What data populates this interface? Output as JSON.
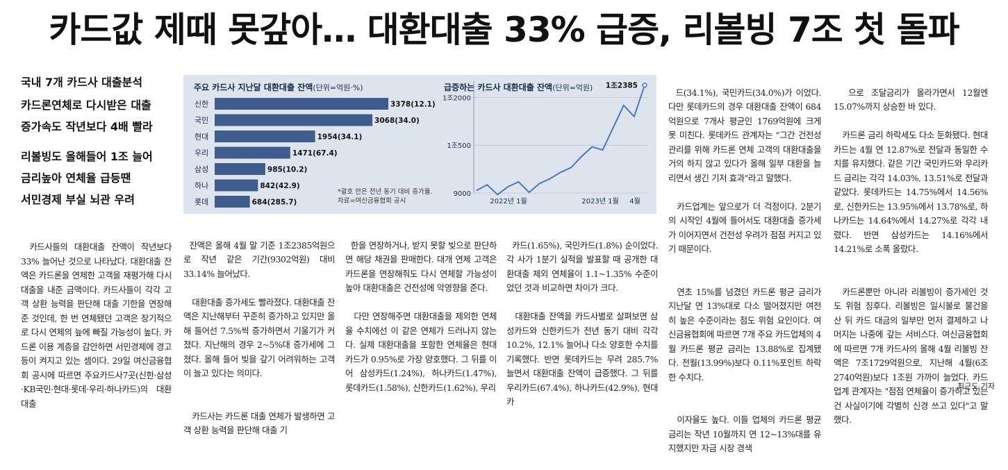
{
  "headline": "카드값 제때 못갚아… 대환대출 33% 급증, 리볼빙 7조 첫 돌파",
  "subheads": [
    "국내 7개 카드사 대출분석",
    "카드론연체로 다시받은 대출",
    "증가속도 작년보다 4배 빨라",
    "리볼빙도 올해들어 1조 늘어",
    "금리높아 연체율 급등땐",
    "서민경제 부실 뇌관 우려"
  ],
  "columns": [
    [
      "카드사들의 대환대출 잔액이 작년보다 33% 늘어난 것으로 나타났다. 대환대출 잔액은 카드론을 연체한 고객을 재평가해 다시 대출을 내준 금액이다. 카드사들이 각각 고객 상환 능력을 판단해 대출 기한을 연장해준 것인데, 한 번 연체됐던 고객은 장기적으로 다시 연체의 늪에 빠질 가능성이 높다. 카드론 이용 계층을 감안하면 서민경제에 경고등이 켜지고 있는 셈이다. 29일 여신금융협회 공시에 따르면 주요카드사7곳(신한·삼성·KB국민·현대·롯데·우리·하나카드)의 대환대출"
    ],
    [
      "잔액은 올해 4월 말 기준 1조2385억원으로 작년 같은 기간(9302억원) 대비 33.14% 늘어났다.",
      "대환대출 증가세도 빨라졌다. 대환대출 잔액은 지난해부터 꾸준히 증가하고 있지만 올해 들어선 7.5%씩 증가하면서 기울기가 커졌다. 지난해의 경우 2~5%대 증가세에 그쳤다. 올해 들어 빚을 갚기 어려워하는 고객이 늘고 있다는 의미다.",
      "카드사는 카드론 대출 연체가 발생하면 고객 상환 능력을 판단해 대출 기"
    ],
    [
      "한을 연장하거나, 받지 못할 빚으로 판단하면 해당 채권을 판매한다. 대개 연체 고객은 카드론을 연장해줘도 다시 연체할 가능성이 높아 대환대출은 건전성에 악영향을 준다.",
      "다만 연장해주면 대환대출을 제외한 연체율 수치에선 이 같은 연체가 드러나지 않는다. 실제 대환대출을 포함한 연체율은 현대카드가 0.95%로 가장 양호했다. 그 뒤를 이어 삼성카드(1.24%), 하나카드(1.47%), 롯데카드(1.58%), 신한카드(1.62%), 우리"
    ],
    [
      "카드(1.65%), 국민카드(1.8%) 순이었다. 각 사가 1분기 실적을 발표할 때 공개한 대환대출 제외 연체율이 1.1~1.35% 수준이었던 것과 비교하면 차이가 크다.",
      "대환대출 잔액을 카드사별로 살펴보면 삼성카드와 신한카드가 전년 동기 대비 각각 10.2%, 12.1% 늘어나 다소 양호한 수치를 기록했다. 반면 롯데카드는 무려 285.7% 늘면서 대환대출 잔액이 급증했다. 그 뒤를 우리카드(67.4%), 하나카드(42.9%), 현대카"
    ],
    [
      "드(34.1%), 국민카드(34.0%)가 이었다. 다만 롯데카드의 경우 대환대출 잔액이 684억원으로 7개사 평균인 1769억원에 크게 못 미친다. 롯데카드 관계자는 \"그간 건전성 관리를 위해 카드론 연체 고객의 대환대출을 거의 하지 않고 있다가 올해 일부 대환을 늘리면서 생긴 기저 효과\"라고 말했다.",
      "카드업계는 앞으로가 더 걱정이다. 2분기의 시작인 4월에 들어서도 대환대출 증가세가 이어지면서 건전성 우려가 점점 커지고 있기 때문이다.",
      "연초 15%를 넘겼던 카드론 평균 금리가 지난달 연 13%대로 다소 떨어졌지만 여전히 높은 수준이라는 점도 위험 요인이다. 여신금융협회에 따르면 7개 주요 카드업체의 4월 카드론 평균 금리는 13.88%로 집계됐다. 전월(13.99%)보다 0.11%포인트 하락한 수치다.",
      "이자율도 높다. 이들 업체의 카드론 평균 금리는 작년 10월까지 연 12~13%대를 유지했지만 자금 시장 경색"
    ],
    [
      "으로 조달금리가 올라가면서 12월엔 15.07%까지 상승한 바 있다.",
      "카드론 금리 하락세도 다소 둔화됐다. 현대카드는 4월 연 12.87%로 전달과 동일한 수치를 유지했다. 같은 기간 국민카드와 우리카드 금리는 각각 14.03%, 13.51%로 전달과 같았다. 롯데카드는 14.75%에서 14.56%로, 신한카드는 13.95%에서 13.78%로, 하나카드는 14.64%에서 14.27%로 각각 내렸다. 반면 삼성카드는 14.16%에서 14.21%로 소폭 올랐다.",
      "카드론뿐만 아니라 리볼빙이 증가세인 것도 위험 징후다. 리볼빙은 일시불로 물건을 산 뒤 카드 대금의 일부만 먼저 결제하고 나머지는 나중에 갚는 서비스다. 여신금융협회에 따르면 7개 카드사의 올해 4월 리볼빙 잔액은 7조1729억원으로, 지난해 4월(6조2740억원)보다 1조원 가까이 늘었다. 카드업계 관계자는 \"점점 연체율이 증가하고 있는 건 사실이기에 각별히 신경 쓰고 있다\"고 말했다."
    ]
  ],
  "byline": "최근도 기자",
  "chart_data": [
    {
      "type": "bar",
      "title": "주요 카드사 지난달 대환대출 잔액",
      "unit": "(단위=억원·%)",
      "categories": [
        "신한",
        "국민",
        "현대",
        "우리",
        "삼성",
        "하나",
        "롯데"
      ],
      "values": [
        3378,
        3068,
        1954,
        1471,
        985,
        842,
        684
      ],
      "labels": [
        "3378(12.1)",
        "3068(34.0)",
        "1954(34.1)",
        "1471(67.4)",
        "985(10.2)",
        "842(42.9)",
        "684(285.7)"
      ],
      "note": "*괄호 안은 전년 동기 대비 증가율.\n자료=여신금융협회 공시",
      "color": "#3f5c8c"
    },
    {
      "type": "line",
      "title": "급증하는 카드사 대환대출 잔액",
      "unit": "(단위=억원)",
      "x_labels": [
        "2022년 1월",
        "2023년 1월",
        "4월"
      ],
      "y_ticks": [
        {
          "label": "9000",
          "value": 9000
        },
        {
          "label": "1조500",
          "value": 10500
        },
        {
          "label": "1조2000",
          "value": 12000
        }
      ],
      "ylim": [
        9000,
        12400
      ],
      "values": [
        9080,
        9260,
        8950,
        9200,
        9350,
        9020,
        9300,
        9450,
        9650,
        9800,
        10150,
        10450,
        10350,
        11050,
        11750,
        11400,
        12385
      ],
      "end_label": "1조2385",
      "color": "#4a79b8"
    }
  ]
}
